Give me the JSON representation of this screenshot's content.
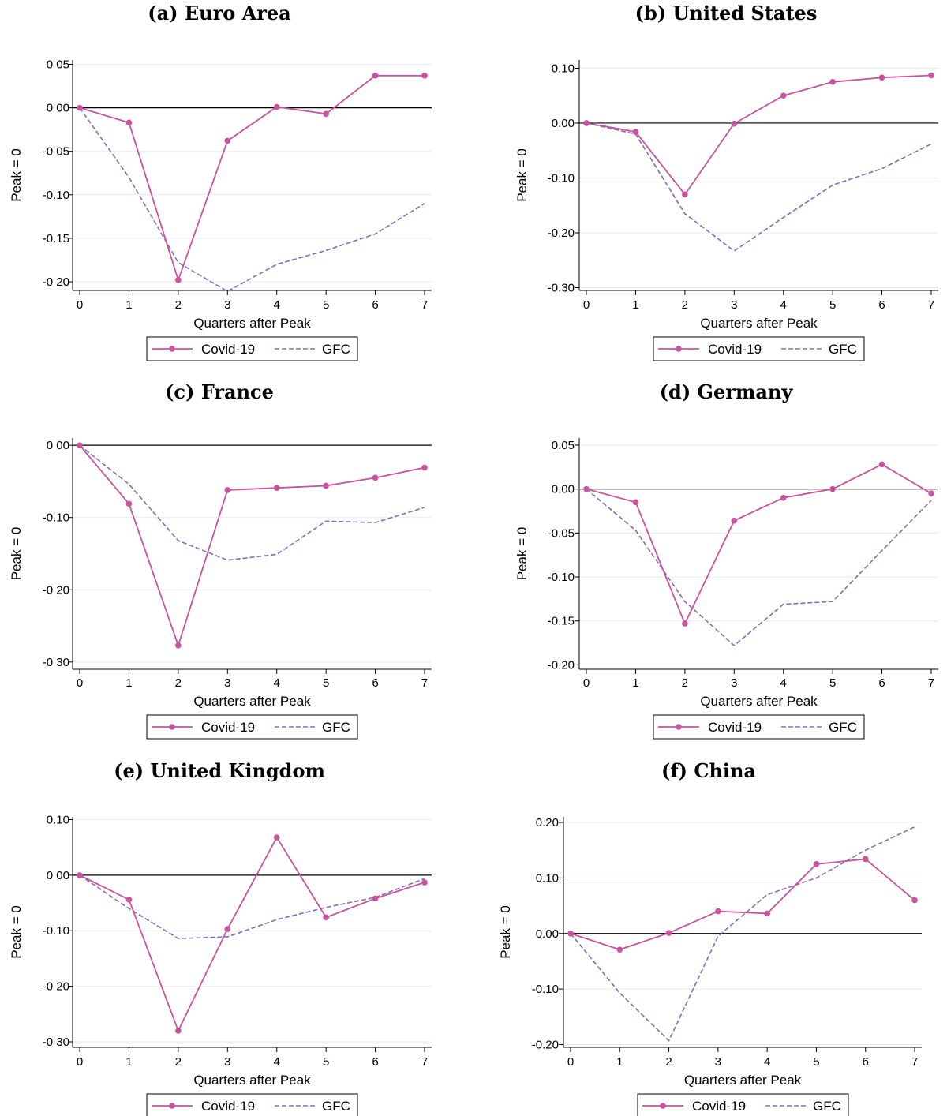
{
  "colors": {
    "covid": "#c9539c",
    "gfc": "#8868c0",
    "grid": "#e9e9e9",
    "zero_line": "#000000"
  },
  "chart_data": [
    {
      "type": "line",
      "title": "(a) Euro Area",
      "xlabel": "Quarters after Peak",
      "ylabel": "Peak = 0",
      "x": [
        0,
        1,
        2,
        3,
        4,
        5,
        6,
        7
      ],
      "xticks": [
        "0",
        "1",
        "2",
        "3",
        "4",
        "5",
        "6",
        "7"
      ],
      "ylim": [
        -0.21,
        0.055
      ],
      "yticks": [
        0.05,
        0.0,
        -0.05,
        -0.1,
        -0.15,
        -0.2
      ],
      "yticklabels": [
        "0 05",
        "0 00",
        "-0 05",
        "-0.10",
        "-0.15",
        "-0 20"
      ],
      "series": [
        {
          "name": "Covid-19",
          "values": [
            0.0,
            -0.017,
            -0.198,
            -0.038,
            0.001,
            -0.007,
            0.037,
            0.037
          ]
        },
        {
          "name": "GFC",
          "values": [
            0.0,
            -0.08,
            -0.178,
            -0.211,
            -0.18,
            -0.164,
            -0.145,
            -0.11
          ]
        }
      ],
      "legend": [
        "Covid-19",
        "GFC"
      ],
      "legend_position": "bottom"
    },
    {
      "type": "line",
      "title": "(b) United States",
      "xlabel": "Quarters after Peak",
      "ylabel": "Peak = 0",
      "x": [
        0,
        1,
        2,
        3,
        4,
        5,
        6,
        7
      ],
      "xticks": [
        "0",
        "1",
        "2",
        "3",
        "4",
        "5",
        "6",
        "7"
      ],
      "ylim": [
        -0.305,
        0.115
      ],
      "yticks": [
        0.1,
        0.0,
        -0.1,
        -0.2,
        -0.3
      ],
      "yticklabels": [
        "0.10",
        "0.00",
        "-0.10",
        "-0.20",
        "-0.30"
      ],
      "series": [
        {
          "name": "Covid-19",
          "values": [
            0.0,
            -0.016,
            -0.13,
            -0.001,
            0.05,
            0.075,
            0.083,
            0.087
          ]
        },
        {
          "name": "GFC",
          "values": [
            0.0,
            -0.02,
            -0.165,
            -0.233,
            -0.172,
            -0.113,
            -0.083,
            -0.038
          ]
        }
      ],
      "legend": [
        "Covid-19",
        "GFC"
      ],
      "legend_position": "bottom"
    },
    {
      "type": "line",
      "title": "(c) France",
      "xlabel": "Quarters after Peak",
      "ylabel": "Peak = 0",
      "x": [
        0,
        1,
        2,
        3,
        4,
        5,
        6,
        7
      ],
      "xticks": [
        "0",
        "1",
        "2",
        "3",
        "4",
        "5",
        "6",
        "7"
      ],
      "ylim": [
        -0.31,
        0.01
      ],
      "yticks": [
        0.0,
        -0.1,
        -0.2,
        -0.3
      ],
      "yticklabels": [
        "0 00",
        "-0.10",
        "-0 20",
        "-0 30"
      ],
      "series": [
        {
          "name": "Covid-19",
          "values": [
            0.0,
            -0.081,
            -0.277,
            -0.062,
            -0.059,
            -0.056,
            -0.045,
            -0.031
          ]
        },
        {
          "name": "GFC",
          "values": [
            0.0,
            -0.054,
            -0.132,
            -0.159,
            -0.151,
            -0.105,
            -0.107,
            -0.086
          ]
        }
      ],
      "legend": [
        "Covid-19",
        "GFC"
      ],
      "legend_position": "bottom"
    },
    {
      "type": "line",
      "title": "(d) Germany",
      "xlabel": "Quarters after Peak",
      "ylabel": "Peak = 0",
      "x": [
        0,
        1,
        2,
        3,
        4,
        5,
        6,
        7
      ],
      "xticks": [
        "0",
        "1",
        "2",
        "3",
        "4",
        "5",
        "6",
        "7"
      ],
      "ylim": [
        -0.205,
        0.058
      ],
      "yticks": [
        0.05,
        0.0,
        -0.05,
        -0.1,
        -0.15,
        -0.2
      ],
      "yticklabels": [
        "0.05",
        "0.00",
        "-0.05",
        "-0.10",
        "-0.15",
        "-0.20"
      ],
      "series": [
        {
          "name": "Covid-19",
          "values": [
            0.0,
            -0.015,
            -0.153,
            -0.036,
            -0.01,
            0.0,
            0.028,
            -0.005
          ]
        },
        {
          "name": "GFC",
          "values": [
            0.0,
            -0.047,
            -0.128,
            -0.178,
            -0.131,
            -0.128,
            -0.07,
            -0.013
          ]
        }
      ],
      "legend": [
        "Covid-19",
        "GFC"
      ],
      "legend_position": "bottom"
    },
    {
      "type": "line",
      "title": "(e) United Kingdom",
      "xlabel": "Quarters after Peak",
      "ylabel": "Peak = 0",
      "x": [
        0,
        1,
        2,
        3,
        4,
        5,
        6,
        7
      ],
      "xticks": [
        "0",
        "1",
        "2",
        "3",
        "4",
        "5",
        "6",
        "7"
      ],
      "ylim": [
        -0.31,
        0.105
      ],
      "yticks": [
        0.1,
        0.0,
        -0.1,
        -0.2,
        -0.3
      ],
      "yticklabels": [
        "0.10",
        "0 00",
        "-0.10",
        "-0 20",
        "-0 30"
      ],
      "series": [
        {
          "name": "Covid-19",
          "values": [
            0.0,
            -0.044,
            -0.28,
            -0.097,
            0.068,
            -0.076,
            -0.042,
            -0.013
          ]
        },
        {
          "name": "GFC",
          "values": [
            0.0,
            -0.06,
            -0.114,
            -0.111,
            -0.08,
            -0.058,
            -0.04,
            -0.006
          ]
        }
      ],
      "legend": [
        "Covid-19",
        "GFC"
      ],
      "legend_position": "bottom"
    },
    {
      "type": "line",
      "title": "(f) China",
      "xlabel": "Quarters after Peak",
      "ylabel": "Peak = 0",
      "x": [
        0,
        1,
        2,
        3,
        4,
        5,
        6,
        7
      ],
      "xticks": [
        "0",
        "1",
        "2",
        "3",
        "4",
        "5",
        "6",
        "7"
      ],
      "ylim": [
        -0.205,
        0.21
      ],
      "yticks": [
        0.2,
        0.1,
        0.0,
        -0.1,
        -0.2
      ],
      "yticklabels": [
        "0.20",
        "0.10",
        "0.00",
        "-0.10",
        "-0.20"
      ],
      "series": [
        {
          "name": "Covid-19",
          "values": [
            0.0,
            -0.029,
            0.001,
            0.04,
            0.036,
            0.125,
            0.134,
            0.06
          ]
        },
        {
          "name": "GFC",
          "values": [
            0.0,
            -0.107,
            -0.193,
            -0.005,
            0.07,
            0.1,
            0.15,
            0.192
          ]
        }
      ],
      "legend": [
        "Covid-19",
        "GFC"
      ],
      "legend_position": "bottom"
    }
  ]
}
